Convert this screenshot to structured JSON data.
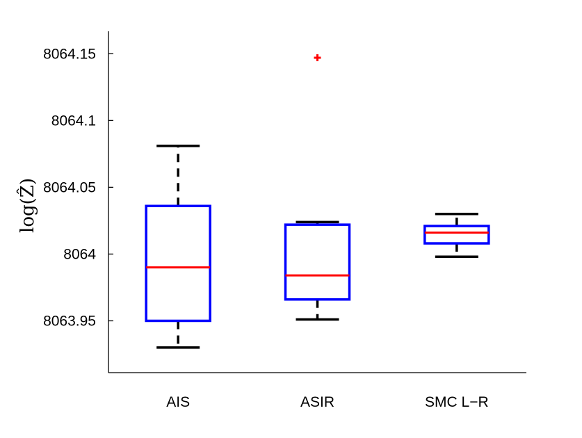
{
  "chart_data": {
    "type": "boxplot",
    "title": "",
    "xlabel": "",
    "ylabel": "log(Ẑ)",
    "ylim": [
      8063.9112,
      8064.1668
    ],
    "yticks": [
      8063.95,
      8064,
      8064.05,
      8064.1,
      8064.15
    ],
    "ytick_labels": [
      "8063.95",
      "8064",
      "8064.05",
      "8064.1",
      "8064.15"
    ],
    "categories": [
      "AIS",
      "ASIR",
      "SMC L−R"
    ],
    "boxes": [
      {
        "name": "AIS",
        "whisker_low": 8063.93,
        "q1": 8063.95,
        "median": 8063.99,
        "q3": 8064.036,
        "whisker_high": 8064.081,
        "outliers": []
      },
      {
        "name": "ASIR",
        "whisker_low": 8063.951,
        "q1": 8063.966,
        "median": 8063.984,
        "q3": 8064.022,
        "whisker_high": 8064.024,
        "outliers": [
          8064.147
        ]
      },
      {
        "name": "SMC L−R",
        "whisker_low": 8063.998,
        "q1": 8064.008,
        "median": 8064.016,
        "q3": 8064.021,
        "whisker_high": 8064.03,
        "outliers": []
      }
    ],
    "colors": {
      "box": "#0000ff",
      "median": "#ff0000",
      "whisker": "#000000",
      "outlier": "#ff0000",
      "axis": "#000000"
    }
  }
}
